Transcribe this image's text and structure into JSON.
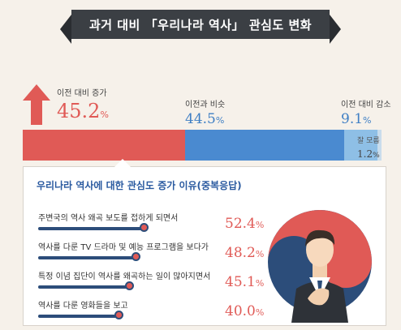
{
  "title": "과거 대비 「우리나라 역사」 관심도 변화",
  "colors": {
    "increase": "#e05a56",
    "same": "#4a8ad0",
    "decrease": "#8ebfe6",
    "unknown": "#c9dcec"
  },
  "chart_data": [
    {
      "type": "bar",
      "title": "과거 대비 「우리나라 역사」 관심도 변화",
      "categories": [
        "이전 대비 증가",
        "이전과 비슷",
        "이전 대비 감소",
        "잘 모름"
      ],
      "values": [
        45.2,
        44.5,
        9.1,
        1.2
      ],
      "unit": "%"
    },
    {
      "type": "bar",
      "title": "우리나라 역사에 대한 관심도 증가 이유(중복응답)",
      "categories": [
        "주변국의 역사 왜곡 보도를 접하게 되면서",
        "역사를 다룬 TV 드라마 및 예능 프로그램을 보다가",
        "특정 이념 집단이 역사를 왜곡하는 일이 많아지면서",
        "역사를 다룬 영화들을 보고"
      ],
      "values": [
        52.4,
        48.2,
        45.1,
        40.0
      ],
      "unit": "%"
    }
  ],
  "top": {
    "inc": {
      "label": "이전 대비 증가",
      "value": "45.2",
      "unit": "%"
    },
    "same": {
      "label": "이전과 비슷",
      "value": "44.5",
      "unit": "%"
    },
    "dec": {
      "label": "이전 대비 감소",
      "value": "9.1",
      "unit": "%"
    },
    "unk": {
      "label": "잘 모름",
      "value": "1.2",
      "unit": "%"
    }
  },
  "reasons": {
    "title": "우리나라 역사에 대한 관심도 증가 이유(중복응답)",
    "items": [
      {
        "label": "주변국의 역사 왜곡 보도를 접하게 되면서",
        "value": "52.4",
        "unit": "%"
      },
      {
        "label": "역사를 다룬 TV 드라마 및 예능 프로그램을 보다가",
        "value": "48.2",
        "unit": "%"
      },
      {
        "label": "특정 이념 집단이 역사를 왜곡하는 일이 많아지면서",
        "value": "45.1",
        "unit": "%"
      },
      {
        "label": "역사를 다룬 영화들을 보고",
        "value": "40.0",
        "unit": "%"
      }
    ]
  }
}
